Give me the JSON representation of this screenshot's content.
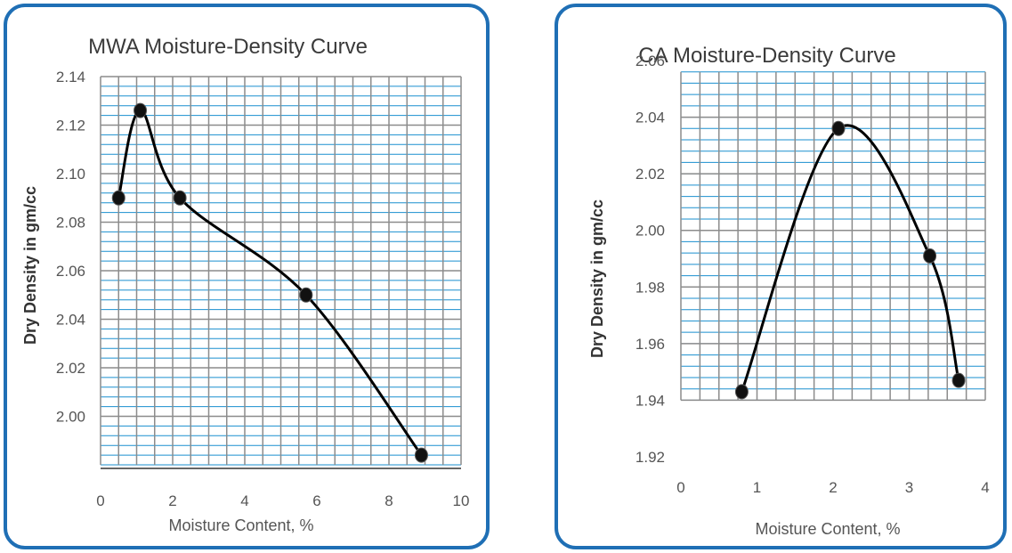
{
  "colors": {
    "panel_border": "#1f6fb5",
    "minor_grid": "#1a8fcf",
    "major_grid": "#8c8c8c",
    "curve": "#000000",
    "marker": "#111111"
  },
  "chart_data": [
    {
      "type": "scatter",
      "smooth_line": true,
      "title": "MWA Moisture-Density Curve",
      "xlabel": "Moisture Content, %",
      "ylabel": "Dry Density in gm/cc",
      "xlim": [
        0,
        10
      ],
      "ylim": [
        1.98,
        2.14
      ],
      "x_ticks": [
        "0",
        "2",
        "4",
        "6",
        "8",
        "10"
      ],
      "y_ticks": [
        "2.14",
        "2.12",
        "2.10",
        "2.08",
        "2.06",
        "2.04",
        "2.02",
        "2.00"
      ],
      "grid": true,
      "legend": "none",
      "points": [
        {
          "x": 0.5,
          "y": 2.09
        },
        {
          "x": 1.1,
          "y": 2.126
        },
        {
          "x": 2.2,
          "y": 2.09
        },
        {
          "x": 5.7,
          "y": 2.05
        },
        {
          "x": 8.9,
          "y": 1.984
        }
      ]
    },
    {
      "type": "scatter",
      "smooth_line": true,
      "title": "CA Moisture-Density Curve",
      "xlabel": "Moisture Content, %",
      "ylabel": "Dry Density in gm/cc",
      "xlim": [
        0,
        4
      ],
      "ylim": [
        1.92,
        2.06
      ],
      "x_ticks": [
        "0",
        "1",
        "2",
        "3",
        "4"
      ],
      "y_ticks": [
        "2.06",
        "2.04",
        "2.02",
        "2.00",
        "1.98",
        "1.96",
        "1.94",
        "1.92"
      ],
      "grid": true,
      "legend": "none",
      "points": [
        {
          "x": 0.8,
          "y": 1.943
        },
        {
          "x": 2.07,
          "y": 2.036
        },
        {
          "x": 3.27,
          "y": 1.991
        },
        {
          "x": 3.65,
          "y": 1.947
        }
      ]
    }
  ]
}
